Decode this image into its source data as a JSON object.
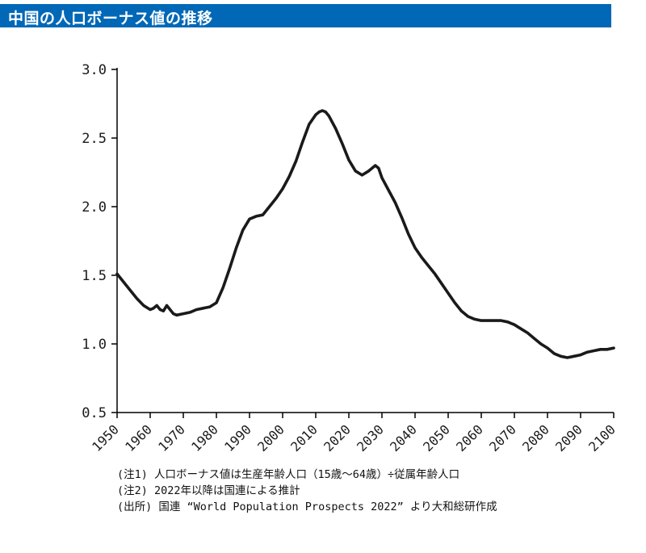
{
  "header": {
    "title": "中国の人口ボーナス値の推移",
    "bg_color": "#0068b7",
    "text_color": "#ffffff"
  },
  "notes": [
    "(注1) 人口ボーナス値は生産年齢人口（15歳～64歳）÷従属年齢人口",
    "(注2) 2022年以降は国連による推計",
    "(出所) 国連 “World Population Prospects 2022” より大和総研作成"
  ],
  "chart_data": {
    "type": "line",
    "title": "中国の人口ボーナス値の推移",
    "series_name": "人口ボーナス値",
    "xlabel": "",
    "ylabel": "",
    "xlim": [
      1950,
      2100
    ],
    "ylim": [
      0.5,
      3.0
    ],
    "grid": false,
    "legend": "none",
    "line_color": "#1a1a1a",
    "axis_color": "#000000",
    "y_ticks": [
      "0.5",
      "1.0",
      "1.5",
      "2.0",
      "2.5",
      "3.0"
    ],
    "x_ticks": [
      1950,
      1960,
      1970,
      1980,
      1990,
      2000,
      2010,
      2020,
      2030,
      2040,
      2050,
      2060,
      2070,
      2080,
      2090,
      2100
    ],
    "x": [
      1950,
      1952,
      1954,
      1956,
      1958,
      1960,
      1961,
      1962,
      1963,
      1964,
      1965,
      1966,
      1967,
      1968,
      1970,
      1972,
      1974,
      1976,
      1978,
      1980,
      1982,
      1984,
      1986,
      1988,
      1990,
      1992,
      1994,
      1996,
      1998,
      2000,
      2002,
      2004,
      2006,
      2008,
      2010,
      2011,
      2012,
      2013,
      2014,
      2016,
      2018,
      2020,
      2022,
      2024,
      2026,
      2028,
      2029,
      2030,
      2032,
      2034,
      2036,
      2038,
      2040,
      2042,
      2044,
      2046,
      2048,
      2050,
      2052,
      2054,
      2056,
      2058,
      2060,
      2062,
      2064,
      2066,
      2068,
      2070,
      2072,
      2074,
      2076,
      2078,
      2080,
      2082,
      2084,
      2086,
      2088,
      2090,
      2092,
      2094,
      2096,
      2098,
      2100
    ],
    "values": [
      1.51,
      1.45,
      1.39,
      1.33,
      1.28,
      1.25,
      1.26,
      1.28,
      1.25,
      1.24,
      1.28,
      1.25,
      1.22,
      1.21,
      1.22,
      1.23,
      1.25,
      1.26,
      1.27,
      1.3,
      1.41,
      1.55,
      1.7,
      1.83,
      1.91,
      1.93,
      1.94,
      2.0,
      2.06,
      2.13,
      2.22,
      2.33,
      2.47,
      2.6,
      2.67,
      2.69,
      2.7,
      2.69,
      2.66,
      2.57,
      2.46,
      2.34,
      2.26,
      2.23,
      2.26,
      2.3,
      2.28,
      2.21,
      2.12,
      2.03,
      1.92,
      1.8,
      1.7,
      1.63,
      1.57,
      1.51,
      1.44,
      1.37,
      1.3,
      1.24,
      1.2,
      1.18,
      1.17,
      1.17,
      1.17,
      1.17,
      1.16,
      1.14,
      1.11,
      1.08,
      1.04,
      1.0,
      0.97,
      0.93,
      0.91,
      0.9,
      0.91,
      0.92,
      0.94,
      0.95,
      0.96,
      0.96,
      0.97
    ]
  }
}
